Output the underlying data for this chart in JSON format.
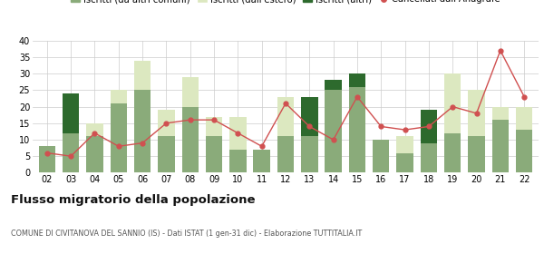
{
  "years": [
    "02",
    "03",
    "04",
    "05",
    "06",
    "07",
    "08",
    "09",
    "10",
    "11",
    "12",
    "13",
    "14",
    "15",
    "16",
    "17",
    "18",
    "19",
    "20",
    "21",
    "22"
  ],
  "iscritti_comuni": [
    8,
    12,
    11,
    21,
    25,
    11,
    20,
    11,
    7,
    7,
    11,
    11,
    25,
    26,
    10,
    6,
    9,
    12,
    11,
    16,
    13
  ],
  "iscritti_estero": [
    0,
    3,
    4,
    4,
    9,
    8,
    9,
    6,
    10,
    0,
    12,
    0,
    0,
    0,
    0,
    5,
    0,
    18,
    14,
    4,
    7
  ],
  "iscritti_altri": [
    0,
    12,
    0,
    0,
    0,
    0,
    0,
    0,
    0,
    0,
    0,
    12,
    3,
    4,
    0,
    0,
    10,
    0,
    0,
    0,
    0
  ],
  "cancellati": [
    6,
    5,
    12,
    8,
    9,
    15,
    16,
    16,
    12,
    8,
    21,
    14,
    10,
    23,
    14,
    13,
    14,
    20,
    18,
    37,
    23
  ],
  "color_comuni": "#8aab7a",
  "color_estero": "#dce8c0",
  "color_altri": "#2d6a2d",
  "color_cancellati": "#e07070",
  "color_line": "#d05050",
  "ylim": [
    0,
    40
  ],
  "yticks": [
    0,
    5,
    10,
    15,
    20,
    25,
    30,
    35,
    40
  ],
  "title": "Flusso migratorio della popolazione",
  "subtitle": "COMUNE DI CIVITANOVA DEL SANNIO (IS) - Dati ISTAT (1 gen-31 dic) - Elaborazione TUTTITALIA.IT",
  "bg_color": "#ffffff",
  "grid_color": "#cccccc"
}
